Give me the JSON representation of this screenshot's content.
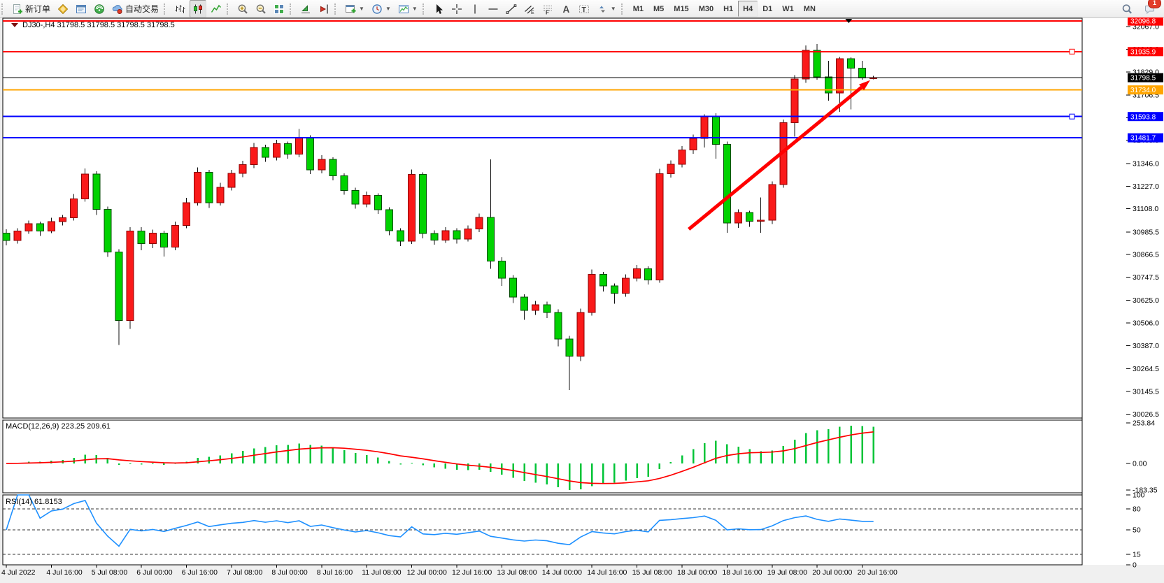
{
  "toolbar": {
    "groups": [
      {
        "name": "trade",
        "items": [
          {
            "name": "new-order-button",
            "icon": "new-order-icon",
            "label": "新订单"
          },
          {
            "name": "market-watch-button",
            "icon": "market-watch-icon"
          },
          {
            "name": "data-window-button",
            "icon": "data-window-icon"
          },
          {
            "name": "navigator-button",
            "icon": "navigator-icon"
          },
          {
            "name": "auto-trading-button",
            "icon": "auto-trading-icon",
            "label": "自动交易"
          }
        ]
      },
      {
        "name": "chart-type",
        "items": [
          {
            "name": "bar-chart-button",
            "icon": "bar-chart-icon"
          },
          {
            "name": "candle-chart-button",
            "icon": "candle-chart-icon",
            "pressed": true
          },
          {
            "name": "line-chart-button",
            "icon": "line-chart-icon"
          }
        ]
      },
      {
        "name": "zoom",
        "items": [
          {
            "name": "zoom-in-button",
            "icon": "zoom-in-icon"
          },
          {
            "name": "zoom-out-button",
            "icon": "zoom-out-icon"
          },
          {
            "name": "tile-windows-button",
            "icon": "tile-windows-icon"
          }
        ]
      },
      {
        "name": "scroll",
        "items": [
          {
            "name": "auto-scroll-button",
            "icon": "auto-scroll-icon"
          },
          {
            "name": "chart-shift-button",
            "icon": "chart-shift-icon"
          }
        ]
      },
      {
        "name": "new-objects",
        "items": [
          {
            "name": "new-chart-button",
            "icon": "new-chart-icon",
            "dropdown": true
          },
          {
            "name": "periods-button",
            "icon": "periods-icon",
            "dropdown": true
          },
          {
            "name": "templates-button",
            "icon": "templates-icon",
            "dropdown": true
          }
        ]
      },
      {
        "name": "drawing",
        "items": [
          {
            "name": "cursor-button",
            "icon": "cursor-icon"
          },
          {
            "name": "crosshair-button",
            "icon": "crosshair-icon"
          },
          {
            "name": "vertical-line-button",
            "icon": "vertical-line-icon"
          },
          {
            "name": "horizontal-line-button",
            "icon": "horizontal-line-icon"
          },
          {
            "name": "trendline-button",
            "icon": "trendline-icon"
          },
          {
            "name": "channel-button",
            "icon": "channel-icon"
          },
          {
            "name": "fibonacci-button",
            "icon": "fibonacci-icon"
          },
          {
            "name": "text-button",
            "icon": "text-icon"
          },
          {
            "name": "text-label-button",
            "icon": "text-label-icon"
          },
          {
            "name": "arrows-button",
            "icon": "arrows-icon",
            "dropdown": true
          }
        ]
      }
    ],
    "timeframes": {
      "options": [
        "M1",
        "M5",
        "M15",
        "M30",
        "H1",
        "H4",
        "D1",
        "W1",
        "MN"
      ],
      "selected": "H4"
    },
    "right": [
      {
        "name": "search-button",
        "icon": "search-icon"
      },
      {
        "name": "notifications-button",
        "icon": "chat-icon",
        "badge": "1"
      }
    ]
  },
  "chart_data": {
    "type": "candlestick",
    "symbol_title": "DJ30-,H4  31798.5 31798.5 31798.5 31798.5",
    "colors": {
      "up_fill": "#fa1a1a",
      "up_stroke": "#8c0000",
      "down_fill": "#00d200",
      "down_stroke": "#004d00",
      "wick": "#111111",
      "macd_hist": "#00c437",
      "macd_signal": "#ff0000",
      "rsi_line": "#1e90ff"
    },
    "price_axis": {
      "ticks": [
        {
          "label": "32067.0",
          "price": 32067.0
        },
        {
          "label": "31948.0",
          "price": 31948.0
        },
        {
          "label": "31829.0",
          "price": 31829.0
        },
        {
          "label": "31706.5",
          "price": 31706.5
        },
        {
          "label": "31587.5",
          "price": 31587.5
        },
        {
          "label": "31468.5",
          "price": 31468.5
        },
        {
          "label": "31346.0",
          "price": 31346.0
        },
        {
          "label": "31227.0",
          "price": 31227.0
        },
        {
          "label": "31108.0",
          "price": 31108.0
        },
        {
          "label": "30985.5",
          "price": 30985.5
        },
        {
          "label": "30866.5",
          "price": 30866.5
        },
        {
          "label": "30747.5",
          "price": 30747.5
        },
        {
          "label": "30625.0",
          "price": 30625.0
        },
        {
          "label": "30506.0",
          "price": 30506.0
        },
        {
          "label": "30387.0",
          "price": 30387.0
        },
        {
          "label": "30264.5",
          "price": 30264.5
        },
        {
          "label": "30145.5",
          "price": 30145.5
        },
        {
          "label": "30026.5",
          "price": 30026.5
        }
      ]
    },
    "hlines": [
      {
        "label": "32096.8",
        "price": 32096.8,
        "color": "#ff0000",
        "width": 2,
        "handle": false
      },
      {
        "label": "31935.9",
        "price": 31935.9,
        "color": "#ff0000",
        "width": 2,
        "handle": true
      },
      {
        "label": "31798.5",
        "price": 31798.5,
        "color": "#000000",
        "width": 1,
        "handle": false,
        "badge_bg": "#000000"
      },
      {
        "label": "31734.0",
        "price": 31734.0,
        "color": "#ffa500",
        "width": 2,
        "handle": false
      },
      {
        "label": "31593.8",
        "price": 31593.8,
        "color": "#0000ff",
        "width": 2,
        "handle": true
      },
      {
        "label": "31481.7",
        "price": 31481.7,
        "color": "#0000ff",
        "width": 2,
        "handle": false
      }
    ],
    "x_labels": [
      "4 Jul 2022",
      "4 Jul 16:00",
      "5 Jul 08:00",
      "6 Jul 00:00",
      "6 Jul 16:00",
      "7 Jul 08:00",
      "8 Jul 00:00",
      "8 Jul 16:00",
      "11 Jul 08:00",
      "12 Jul 00:00",
      "12 Jul 16:00",
      "13 Jul 08:00",
      "14 Jul 00:00",
      "14 Jul 16:00",
      "15 Jul 08:00",
      "18 Jul 00:00",
      "18 Jul 16:00",
      "19 Jul 08:00",
      "20 Jul 00:00",
      "20 Jul 16:00"
    ],
    "bars_per_label": 4,
    "candles": [
      [
        30980,
        31000,
        30915,
        30940
      ],
      [
        30940,
        31005,
        30925,
        30990
      ],
      [
        30990,
        31045,
        30975,
        31030
      ],
      [
        31030,
        31040,
        30965,
        30990
      ],
      [
        30990,
        31060,
        30980,
        31040
      ],
      [
        31040,
        31075,
        31020,
        31060
      ],
      [
        31060,
        31185,
        31045,
        31160
      ],
      [
        31160,
        31320,
        31145,
        31290
      ],
      [
        31290,
        31305,
        31075,
        31105
      ],
      [
        31105,
        31120,
        30855,
        30880
      ],
      [
        30880,
        30895,
        30390,
        30520
      ],
      [
        30520,
        31010,
        30475,
        30990
      ],
      [
        30990,
        31010,
        30890,
        30925
      ],
      [
        30925,
        30998,
        30900,
        30980
      ],
      [
        30980,
        30992,
        30856,
        30905
      ],
      [
        30905,
        31040,
        30890,
        31020
      ],
      [
        31020,
        31165,
        31005,
        31140
      ],
      [
        31140,
        31325,
        31125,
        31300
      ],
      [
        31300,
        31312,
        31112,
        31140
      ],
      [
        31140,
        31245,
        31125,
        31220
      ],
      [
        31220,
        31312,
        31205,
        31295
      ],
      [
        31295,
        31360,
        31275,
        31340
      ],
      [
        31340,
        31455,
        31322,
        31430
      ],
      [
        31430,
        31445,
        31355,
        31380
      ],
      [
        31380,
        31472,
        31362,
        31450
      ],
      [
        31450,
        31462,
        31372,
        31395
      ],
      [
        31395,
        31528,
        31380,
        31480
      ],
      [
        31480,
        31495,
        31290,
        31312
      ],
      [
        31312,
        31390,
        31295,
        31368
      ],
      [
        31368,
        31380,
        31258,
        31282
      ],
      [
        31282,
        31295,
        31182,
        31205
      ],
      [
        31205,
        31218,
        31108,
        31132
      ],
      [
        31132,
        31198,
        31115,
        31178
      ],
      [
        31178,
        31190,
        31080,
        31102
      ],
      [
        31102,
        31115,
        30968,
        30992
      ],
      [
        30992,
        31005,
        30912,
        30938
      ],
      [
        30938,
        31315,
        30922,
        31288
      ],
      [
        31288,
        31300,
        30952,
        30978
      ],
      [
        30978,
        30995,
        30918,
        30942
      ],
      [
        30942,
        31010,
        30928,
        30992
      ],
      [
        30992,
        31005,
        30925,
        30948
      ],
      [
        30948,
        31020,
        30935,
        31002
      ],
      [
        31002,
        31082,
        30985,
        31062
      ],
      [
        31062,
        31368,
        30792,
        30832
      ],
      [
        30832,
        30852,
        30702,
        30742
      ],
      [
        30742,
        30758,
        30612,
        30642
      ],
      [
        30642,
        30658,
        30522,
        30572
      ],
      [
        30572,
        30622,
        30548,
        30602
      ],
      [
        30602,
        30618,
        30532,
        30562
      ],
      [
        30562,
        30578,
        30382,
        30422
      ],
      [
        30422,
        30438,
        30152,
        30332
      ],
      [
        30332,
        30582,
        30305,
        30562
      ],
      [
        30562,
        30788,
        30545,
        30762
      ],
      [
        30762,
        30775,
        30672,
        30702
      ],
      [
        30702,
        30715,
        30608,
        30662
      ],
      [
        30662,
        30762,
        30645,
        30742
      ],
      [
        30742,
        30812,
        30725,
        30792
      ],
      [
        30792,
        30805,
        30708,
        30732
      ],
      [
        30732,
        31318,
        30718,
        31292
      ],
      [
        31292,
        31362,
        31272,
        31342
      ],
      [
        31342,
        31438,
        31325,
        31418
      ],
      [
        31418,
        31498,
        31398,
        31478
      ],
      [
        31478,
        31605,
        31430,
        31592
      ],
      [
        31592,
        31612,
        31372,
        31448
      ],
      [
        31448,
        31462,
        30982,
        31032
      ],
      [
        31032,
        31105,
        31008,
        31088
      ],
      [
        31088,
        31098,
        31012,
        31042
      ],
      [
        31042,
        31168,
        30982,
        31048
      ],
      [
        31048,
        31252,
        31028,
        31235
      ],
      [
        31235,
        31578,
        31218,
        31562
      ],
      [
        31562,
        31812,
        31488,
        31792
      ],
      [
        31792,
        31968,
        31772,
        31942
      ],
      [
        31942,
        31975,
        31788,
        31802
      ],
      [
        31802,
        31888,
        31678,
        31718
      ],
      [
        31718,
        31908,
        31618,
        31898
      ],
      [
        31898,
        31905,
        31632,
        31848
      ],
      [
        31848,
        31888,
        31788,
        31798
      ],
      [
        31798,
        31808,
        31790,
        31798.5
      ]
    ],
    "arrow": {
      "from_bar": 60.6,
      "from_price": 31000,
      "to_bar": 76.7,
      "to_price": 31785,
      "color": "#ff0000"
    },
    "top_marker_bar": 74.8,
    "macd": {
      "label": "MACD(12,26,9) 223.25 209.61",
      "params": [
        12,
        26,
        9
      ],
      "current_macd": 223.25,
      "current_signal": 209.61,
      "ticks": [
        {
          "label": "253.84",
          "value": 253.84
        },
        {
          "label": "0.00",
          "value": 0
        },
        {
          "label": "-183.35",
          "value": -183.35
        }
      ]
    },
    "rsi": {
      "label": "RSI(14) 61.8153",
      "period": 14,
      "current": 61.8153,
      "ticks": [
        {
          "label": "100",
          "value": 100
        },
        {
          "label": "80",
          "value": 80
        },
        {
          "label": "50",
          "value": 50
        },
        {
          "label": "15",
          "value": 15
        },
        {
          "label": "0",
          "value": 0
        }
      ],
      "levels": [
        80,
        50,
        15
      ]
    }
  }
}
